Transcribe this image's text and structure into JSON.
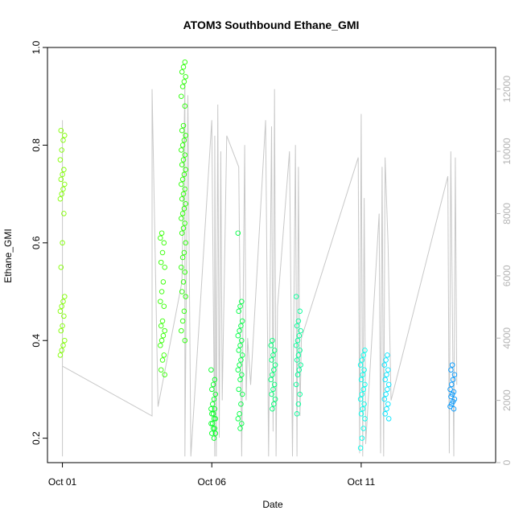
{
  "chart_data": {
    "type": "scatter",
    "title": "ATOM3 Southbound Ethane_GMI",
    "xlabel": "Date",
    "ylabel": "Ethane_GMI",
    "x_unit": "day of October",
    "xlim": [
      0.5,
      15.5
    ],
    "ylim": [
      0.15,
      1.0
    ],
    "y_ticks": [
      "0.2",
      "0.4",
      "0.6",
      "0.8",
      "1.0"
    ],
    "x_ticks": [
      {
        "x": 1,
        "label": "Oct 01"
      },
      {
        "x": 6,
        "label": "Oct 06"
      },
      {
        "x": 11,
        "label": "Oct 11"
      }
    ],
    "y2_label": "",
    "y2lim": [
      0,
      13000
    ],
    "y2_ticks": [
      "0",
      "2000",
      "4000",
      "6000",
      "8000",
      "10000",
      "12000"
    ],
    "grid": false,
    "legend": "none",
    "colors": {
      "altitude_line": "#c8c8c8",
      "axis": "#000000",
      "right_axis": "#b4b4b4"
    },
    "series": [
      {
        "x": 1.0,
        "y_points": [
          0.37,
          0.38,
          0.39,
          0.4,
          0.42,
          0.43,
          0.45,
          0.46,
          0.47,
          0.48,
          0.49,
          0.55,
          0.6,
          0.66,
          0.69,
          0.7,
          0.71,
          0.72,
          0.73,
          0.74,
          0.75,
          0.77,
          0.79,
          0.81,
          0.82,
          0.83
        ],
        "color": "#80ff00"
      },
      {
        "x": 4.35,
        "y_points": [
          0.33,
          0.34,
          0.36,
          0.37,
          0.39,
          0.4,
          0.41,
          0.42,
          0.43,
          0.44,
          0.47,
          0.48,
          0.5,
          0.52,
          0.55,
          0.56,
          0.58,
          0.6,
          0.61,
          0.62
        ],
        "color": "#33ff00"
      },
      {
        "x": 5.05,
        "y_points": [
          0.4,
          0.42,
          0.44,
          0.46,
          0.49,
          0.5,
          0.52,
          0.54,
          0.55,
          0.57,
          0.58,
          0.6,
          0.62,
          0.63,
          0.64,
          0.65,
          0.66,
          0.67,
          0.68,
          0.69,
          0.7,
          0.71,
          0.72,
          0.73,
          0.74,
          0.75,
          0.76,
          0.77,
          0.78,
          0.79,
          0.8,
          0.81,
          0.82,
          0.83,
          0.84,
          0.88,
          0.9,
          0.92,
          0.93,
          0.94,
          0.95,
          0.96,
          0.97
        ],
        "color": "#26ff00"
      },
      {
        "x": 6.05,
        "y_points": [
          0.2,
          0.21,
          0.21,
          0.22,
          0.22,
          0.23,
          0.23,
          0.24,
          0.24,
          0.25,
          0.25,
          0.26,
          0.26,
          0.27,
          0.28,
          0.29,
          0.3,
          0.31,
          0.32,
          0.34
        ],
        "color": "#00ff22"
      },
      {
        "x": 6.95,
        "y_points": [
          0.22,
          0.23,
          0.24,
          0.25,
          0.27,
          0.29,
          0.3,
          0.32,
          0.33,
          0.34,
          0.35,
          0.36,
          0.37,
          0.38,
          0.39,
          0.4,
          0.41,
          0.42,
          0.43,
          0.44,
          0.46,
          0.47,
          0.48,
          0.62
        ],
        "color": "#00ff44"
      },
      {
        "x": 8.05,
        "y_points": [
          0.26,
          0.27,
          0.28,
          0.29,
          0.3,
          0.31,
          0.32,
          0.33,
          0.34,
          0.35,
          0.36,
          0.37,
          0.38,
          0.39,
          0.4
        ],
        "color": "#00ff77"
      },
      {
        "x": 8.9,
        "y_points": [
          0.25,
          0.27,
          0.29,
          0.31,
          0.33,
          0.34,
          0.35,
          0.36,
          0.37,
          0.38,
          0.39,
          0.4,
          0.41,
          0.42,
          0.43,
          0.44,
          0.46,
          0.49
        ],
        "color": "#00ff99"
      },
      {
        "x": 11.05,
        "y_points": [
          0.18,
          0.2,
          0.22,
          0.24,
          0.25,
          0.26,
          0.27,
          0.28,
          0.29,
          0.3,
          0.31,
          0.32,
          0.33,
          0.34,
          0.35,
          0.36,
          0.37,
          0.38
        ],
        "color": "#00ffee"
      },
      {
        "x": 11.85,
        "y_points": [
          0.24,
          0.25,
          0.26,
          0.27,
          0.28,
          0.29,
          0.3,
          0.31,
          0.32,
          0.33,
          0.34,
          0.35,
          0.36,
          0.37
        ],
        "color": "#00e5ff"
      },
      {
        "x": 14.05,
        "y_points": [
          0.26,
          0.265,
          0.27,
          0.275,
          0.28,
          0.285,
          0.29,
          0.295,
          0.3,
          0.31,
          0.32,
          0.33,
          0.34,
          0.35
        ],
        "color": "#0099ff"
      }
    ],
    "altitude_line": [
      [
        1.0,
        200
      ],
      [
        1.0,
        11000
      ],
      [
        1.0,
        7400
      ],
      [
        1.0,
        3100
      ],
      [
        4.0,
        1500
      ],
      [
        4.0,
        12000
      ],
      [
        4.2,
        1800
      ],
      [
        5.0,
        5800
      ],
      [
        5.1,
        12200
      ],
      [
        5.1,
        200
      ],
      [
        5.2,
        11800
      ],
      [
        5.3,
        200
      ],
      [
        6.0,
        11000
      ],
      [
        6.1,
        200
      ],
      [
        6.1,
        10500
      ],
      [
        6.15,
        200
      ],
      [
        6.2,
        11500
      ],
      [
        6.25,
        800
      ],
      [
        6.3,
        10000
      ],
      [
        6.35,
        2000
      ],
      [
        6.5,
        10500
      ],
      [
        6.9,
        9500
      ],
      [
        7.0,
        200
      ],
      [
        7.1,
        10200
      ],
      [
        7.15,
        2000
      ],
      [
        7.2,
        4000
      ],
      [
        7.3,
        2500
      ],
      [
        7.8,
        11000
      ],
      [
        7.9,
        200
      ],
      [
        8.0,
        10800
      ],
      [
        8.05,
        1000
      ],
      [
        8.1,
        12000
      ],
      [
        8.15,
        200
      ],
      [
        8.2,
        5000
      ],
      [
        8.6,
        10000
      ],
      [
        8.7,
        200
      ],
      [
        8.8,
        10200
      ],
      [
        8.85,
        200
      ],
      [
        8.9,
        9500
      ],
      [
        8.95,
        1500
      ],
      [
        9.0,
        4000
      ],
      [
        10.9,
        9800
      ],
      [
        10.95,
        300
      ],
      [
        11.0,
        11200
      ],
      [
        11.05,
        200
      ],
      [
        11.1,
        8500
      ],
      [
        11.15,
        600
      ],
      [
        11.6,
        8000
      ],
      [
        11.65,
        300
      ],
      [
        11.7,
        9500
      ],
      [
        11.75,
        200
      ],
      [
        11.8,
        9800
      ],
      [
        11.9,
        7000
      ],
      [
        12.0,
        2000
      ],
      [
        13.9,
        9200
      ],
      [
        13.95,
        300
      ],
      [
        14.0,
        10000
      ],
      [
        14.1,
        200
      ],
      [
        14.15,
        9800
      ],
      [
        14.2,
        2500
      ]
    ]
  }
}
